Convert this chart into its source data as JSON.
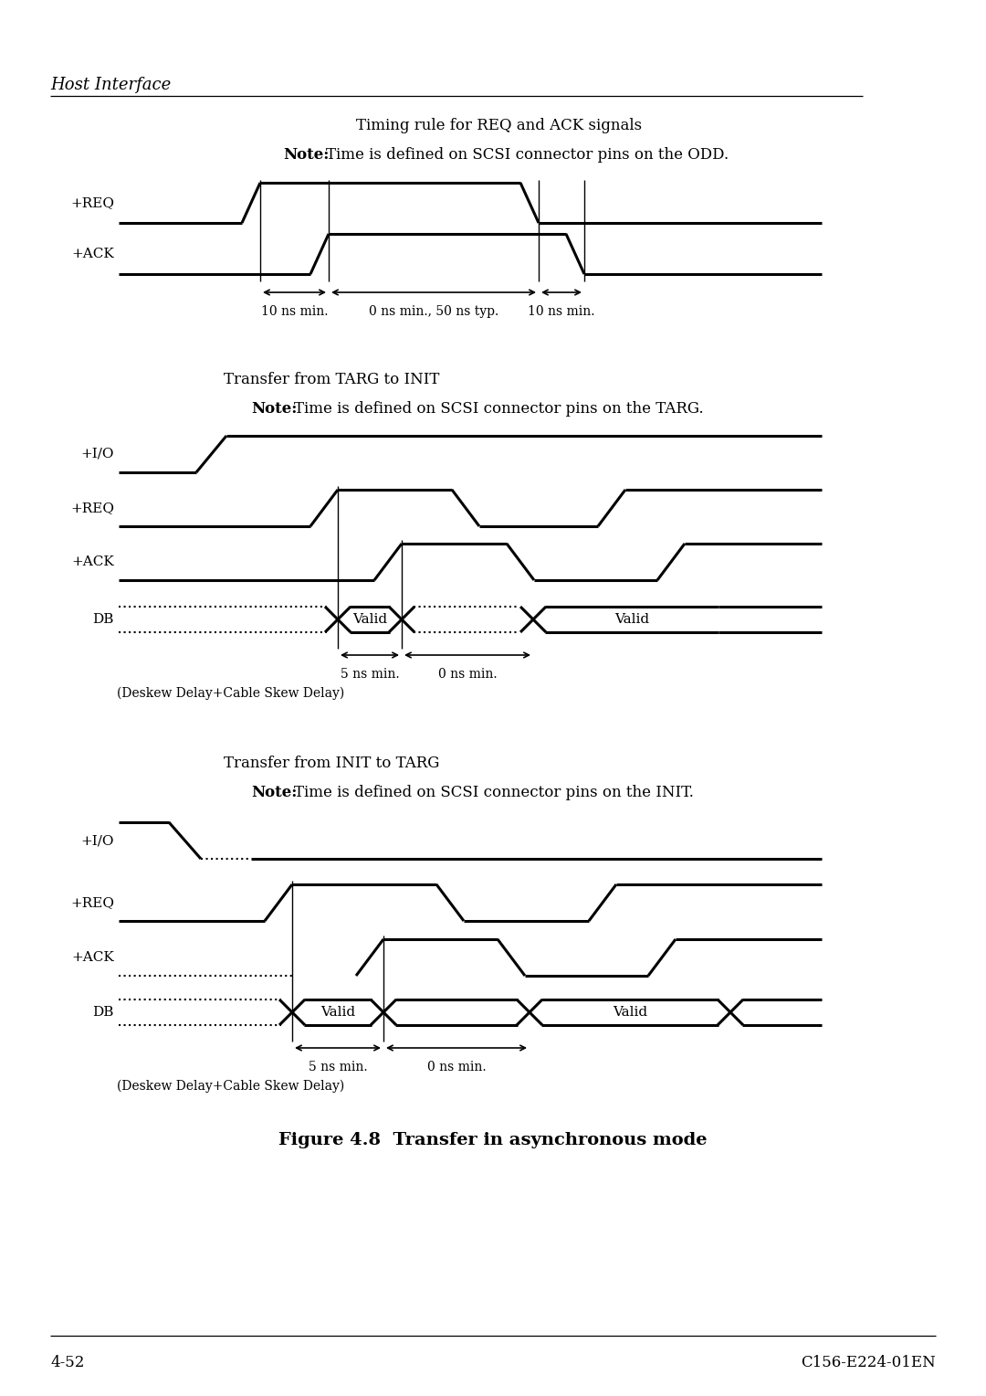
{
  "page_title": "Host Interface",
  "figure_caption": "Figure 4.8  Transfer in asynchronous mode",
  "footer_left": "4-52",
  "footer_right": "C156-E224-01EN",
  "section1_title": "Timing rule for REQ and ACK signals",
  "section2_title": "Transfer from TARG to INIT",
  "section3_title": "Transfer from INIT to TARG",
  "line_color": "#000000",
  "bg_color": "#ffffff",
  "lw": 2.2,
  "thin_lw": 1.0
}
